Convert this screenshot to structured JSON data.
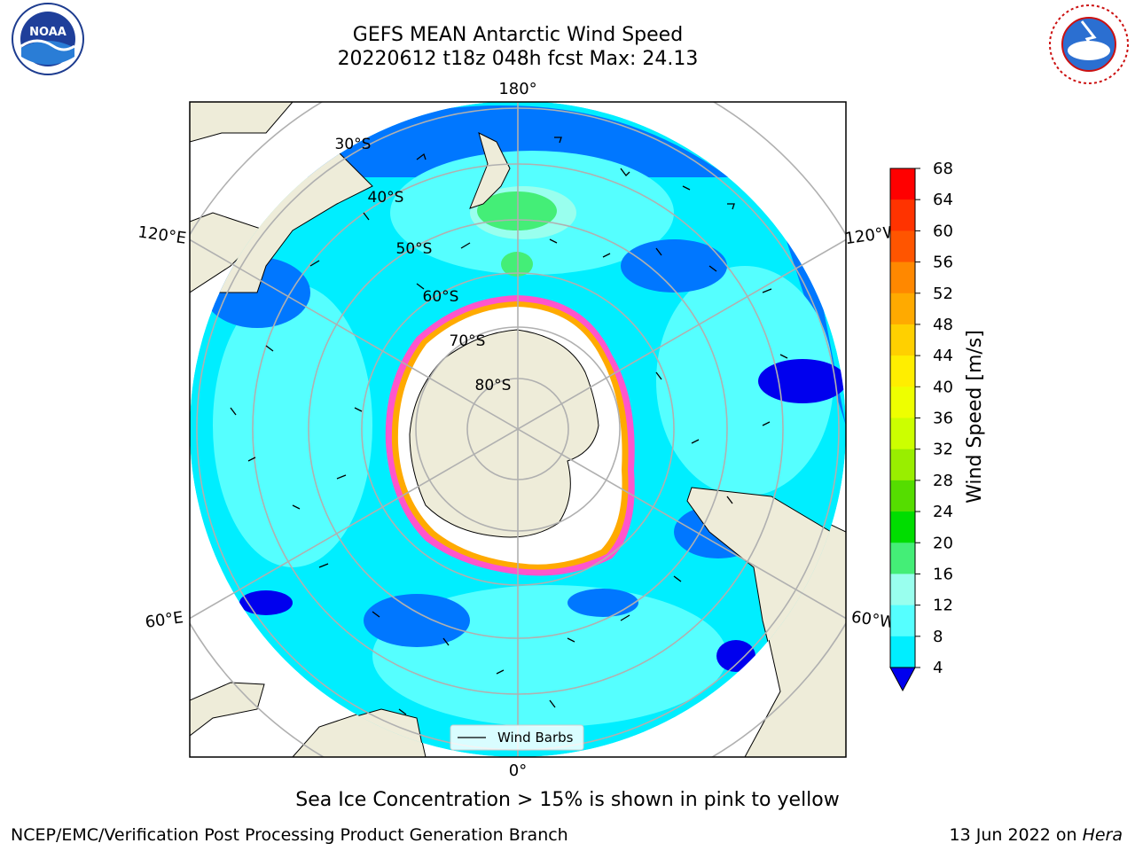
{
  "title_line1": "GEFS MEAN Antarctic Wind Speed",
  "title_line2": "20220612 t18z 048h fcst   Max: 24.13",
  "logos": {
    "left": "noara-logo",
    "right": "nws-logo",
    "noaa_text": "NOAA",
    "nws_text": "NATIONAL WEATHER SERVICE"
  },
  "map": {
    "lon_labels": {
      "top": "180°",
      "bottom": "0°",
      "upper_left": "120°E",
      "upper_right": "120°W",
      "lower_left": "60°E",
      "lower_right": "60°W"
    },
    "lat_labels": [
      "30°S",
      "40°S",
      "50°S",
      "60°S",
      "70°S",
      "80°S"
    ],
    "legend_label": "Wind Barbs"
  },
  "colorbar": {
    "label": "Wind Speed [m/s]",
    "ticks": [
      "68",
      "64",
      "60",
      "56",
      "52",
      "48",
      "44",
      "40",
      "36",
      "32",
      "28",
      "24",
      "20",
      "16",
      "12",
      "8",
      "4"
    ],
    "colors": [
      "#ff0000",
      "#ff3300",
      "#ff5500",
      "#ff8800",
      "#ffaa00",
      "#ffd000",
      "#ffee00",
      "#eeff00",
      "#ccff00",
      "#99ee00",
      "#55dd00",
      "#00dd00",
      "#44ee77",
      "#99ffee",
      "#55ffff",
      "#00eeff",
      "#0077ff"
    ],
    "under_color": "#0000ee"
  },
  "caption": "Sea Ice Concentration > 15% is shown in pink to yellow",
  "footer": {
    "left": "NCEP/EMC/Verification Post Processing Product Generation Branch",
    "right_date": "13 Jun 2022 on ",
    "right_host": "Hera"
  }
}
